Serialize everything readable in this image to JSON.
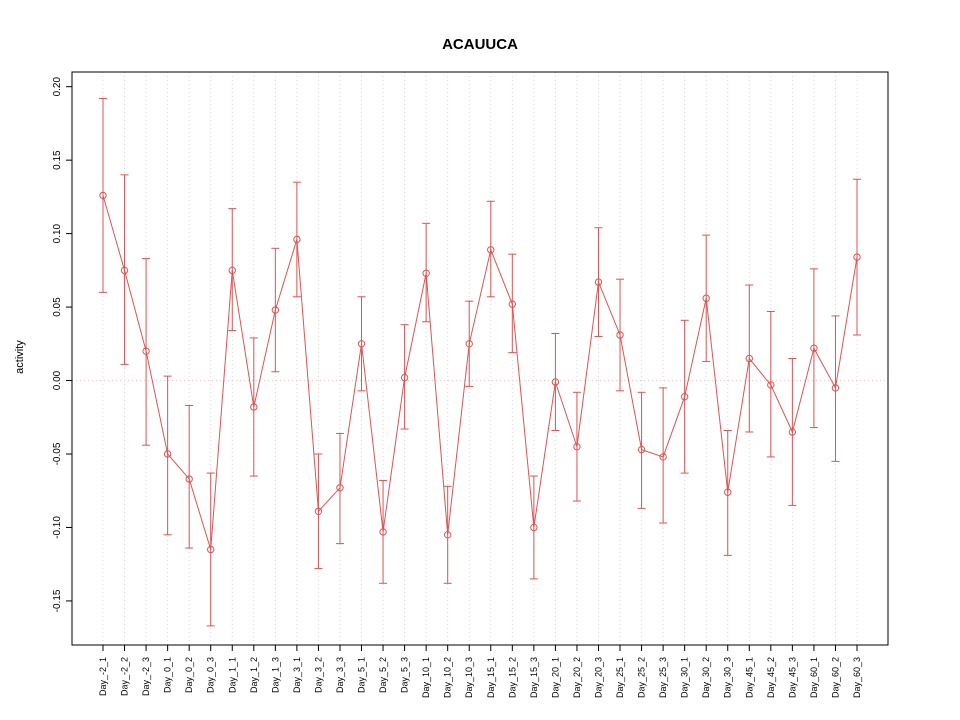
{
  "chart_data": {
    "type": "line",
    "title": "ACAUUCA",
    "ylabel": "activity",
    "xlabel": "",
    "categories": [
      "Day_-2_1",
      "Day_-2_2",
      "Day_-2_3",
      "Day_0_1",
      "Day_0_2",
      "Day_0_3",
      "Day_1_1",
      "Day_1_2",
      "Day_1_3",
      "Day_3_1",
      "Day_3_2",
      "Day_3_3",
      "Day_5_1",
      "Day_5_2",
      "Day_5_3",
      "Day_10_1",
      "Day_10_2",
      "Day_10_3",
      "Day_15_1",
      "Day_15_2",
      "Day_15_3",
      "Day_20_1",
      "Day_20_2",
      "Day_20_3",
      "Day_25_1",
      "Day_25_2",
      "Day_25_3",
      "Day_30_1",
      "Day_30_2",
      "Day_30_3",
      "Day_45_1",
      "Day_45_2",
      "Day_45_3",
      "Day_60_1",
      "Day_60_2",
      "Day_60_3"
    ],
    "series": [
      {
        "name": "activity",
        "values": [
          0.126,
          0.075,
          0.02,
          -0.05,
          -0.067,
          -0.115,
          0.075,
          -0.018,
          0.048,
          0.096,
          -0.089,
          -0.073,
          0.025,
          -0.103,
          0.002,
          0.073,
          -0.105,
          0.025,
          0.089,
          0.052,
          -0.1,
          -0.001,
          -0.045,
          0.067,
          0.031,
          -0.047,
          -0.052,
          -0.011,
          0.056,
          -0.076,
          0.015,
          -0.003,
          -0.035,
          0.022,
          -0.005,
          0.084
        ],
        "error_low": [
          0.06,
          0.011,
          -0.044,
          -0.105,
          -0.114,
          -0.167,
          0.034,
          -0.065,
          0.006,
          0.057,
          -0.128,
          -0.111,
          -0.007,
          -0.138,
          -0.033,
          0.04,
          -0.138,
          -0.004,
          0.057,
          0.019,
          -0.135,
          -0.034,
          -0.082,
          0.03,
          -0.007,
          -0.087,
          -0.097,
          -0.063,
          0.013,
          -0.119,
          -0.035,
          -0.052,
          -0.085,
          -0.032,
          -0.055,
          0.031
        ],
        "error_high": [
          0.192,
          0.14,
          0.083,
          0.003,
          -0.017,
          -0.063,
          0.117,
          0.029,
          0.09,
          0.135,
          -0.05,
          -0.036,
          0.057,
          -0.068,
          0.038,
          0.107,
          -0.072,
          0.054,
          0.122,
          0.086,
          -0.065,
          0.032,
          -0.008,
          0.104,
          0.069,
          -0.008,
          -0.005,
          0.041,
          0.099,
          -0.034,
          0.065,
          0.047,
          0.015,
          0.076,
          0.044,
          0.137
        ]
      }
    ],
    "yticks": {
      "values": [
        -0.15,
        -0.1,
        -0.05,
        0.0,
        0.05,
        0.1,
        0.15,
        0.2
      ],
      "labels": [
        "-0.15",
        "-0.10",
        "-0.05",
        "0.00",
        "0.05",
        "0.10",
        "0.15",
        "0.20"
      ]
    },
    "ylim": [
      -0.18,
      0.21
    ],
    "grid": "vertical-dotted",
    "zero_line": true,
    "legend": "none",
    "colors": {
      "series": "#e05252",
      "grid": "#d8d8d8",
      "zero_line": "#f0c6c6",
      "box": "#000000"
    }
  }
}
